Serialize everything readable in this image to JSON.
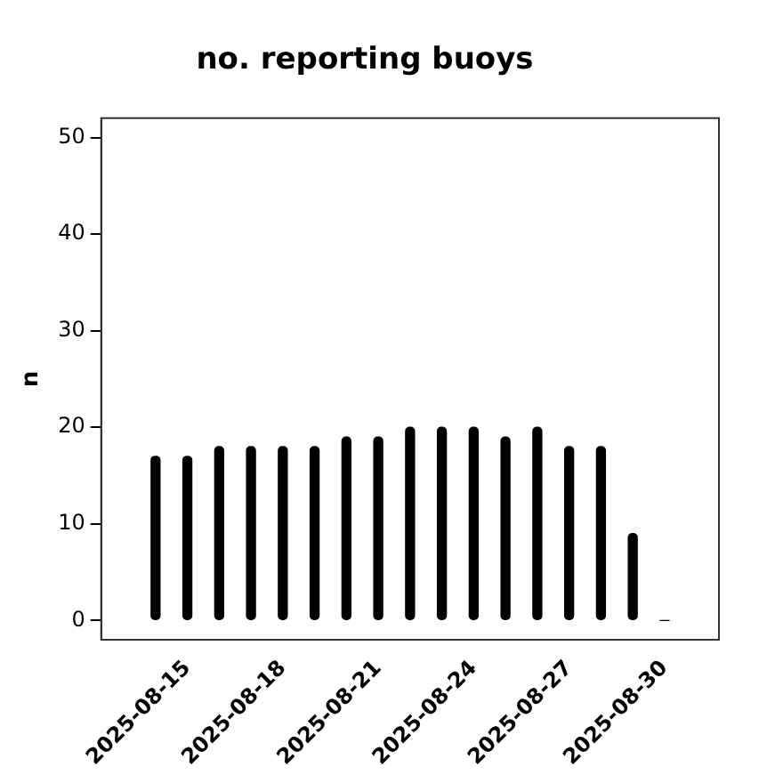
{
  "chart_data": {
    "type": "bar",
    "title": "no. reporting buoys",
    "ylabel": "n",
    "x": [
      "2025-08-14",
      "2025-08-15",
      "2025-08-16",
      "2025-08-17",
      "2025-08-18",
      "2025-08-19",
      "2025-08-20",
      "2025-08-21",
      "2025-08-22",
      "2025-08-23",
      "2025-08-24",
      "2025-08-25",
      "2025-08-26",
      "2025-08-27",
      "2025-08-28",
      "2025-08-29",
      "2025-08-30"
    ],
    "values": [
      17,
      17,
      18,
      18,
      18,
      18,
      19,
      19,
      20,
      20,
      20,
      19,
      20,
      18,
      18,
      9,
      0
    ],
    "color": "#000000",
    "xlim": [
      "2025-08-12T07:00",
      "2025-08-31T17:00"
    ],
    "xticks": [
      "2025-08-15",
      "2025-08-18",
      "2025-08-21",
      "2025-08-24",
      "2025-08-27",
      "2025-08-30"
    ],
    "ylim": [
      -2,
      52
    ],
    "yticks": [
      0,
      10,
      20,
      30,
      40,
      50
    ],
    "grid": false,
    "legend": false
  }
}
